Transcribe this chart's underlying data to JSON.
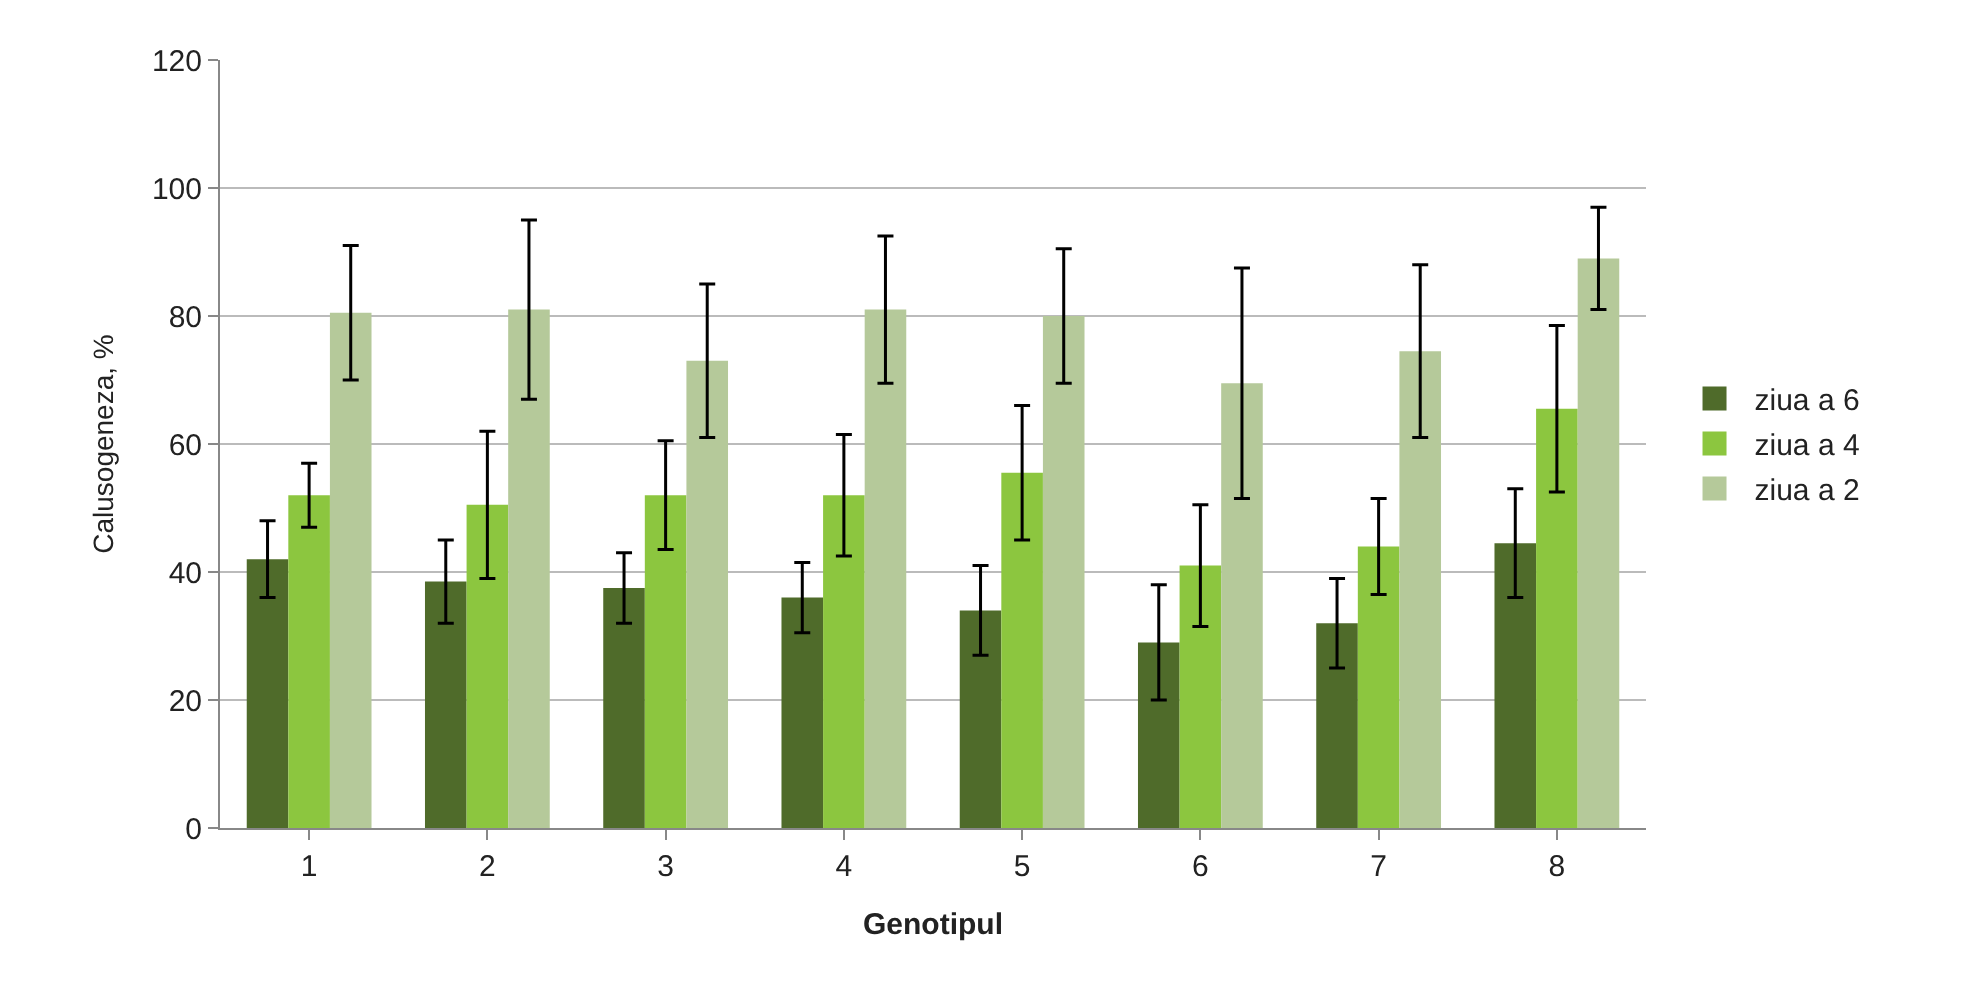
{
  "chart_data": {
    "type": "bar",
    "xlabel": "Genotipul",
    "ylabel": "Calusogeneza, %",
    "categories": [
      "1",
      "2",
      "3",
      "4",
      "5",
      "6",
      "7",
      "8"
    ],
    "series": [
      {
        "name": "ziua a 6",
        "color": "#4f6b2a",
        "values": [
          42,
          38.5,
          37.5,
          36,
          34,
          29,
          32,
          44.5
        ],
        "errors": [
          6,
          6.5,
          5.5,
          5.5,
          7,
          9,
          7,
          8.5
        ]
      },
      {
        "name": "ziua a 4",
        "color": "#8cc63f",
        "values": [
          52,
          50.5,
          52,
          52,
          55.5,
          41,
          44,
          65.5
        ],
        "errors": [
          5,
          11.5,
          8.5,
          9.5,
          10.5,
          9.5,
          7.5,
          13
        ]
      },
      {
        "name": "ziua a 2",
        "color": "#b5c99a",
        "values": [
          80.5,
          81,
          73,
          81,
          80,
          69.5,
          74.5,
          89
        ],
        "errors": [
          10.5,
          14,
          12,
          11.5,
          10.5,
          18,
          13.5,
          8
        ]
      }
    ],
    "ylim": [
      0,
      120
    ],
    "yticks": [
      0,
      20,
      40,
      60,
      80,
      100,
      120
    ],
    "grid": "y",
    "legend": "right"
  }
}
